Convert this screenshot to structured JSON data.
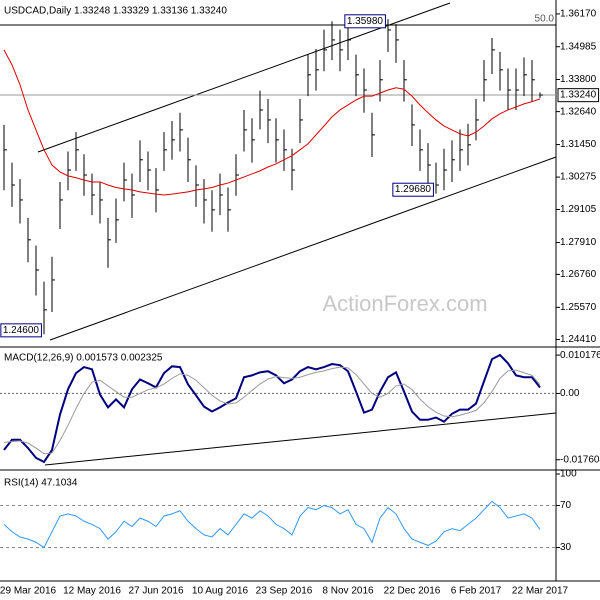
{
  "chart_data": [
    {
      "type": "ohlc",
      "title": "USDCAD,Daily  1.33248 1.33329 1.33136 1.33240",
      "watermark": "ActionForex.com",
      "color": "#000000",
      "categories": [
        null,
        null,
        null,
        "29 Mar 2016",
        null,
        null,
        null,
        null,
        null,
        null,
        null,
        "12 May 2016",
        null,
        null,
        null,
        null,
        null,
        null,
        null,
        "27 Jun 2016",
        null,
        null,
        null,
        null,
        null,
        null,
        null,
        "10 Aug 2016",
        null,
        null,
        null,
        null,
        null,
        null,
        null,
        "23 Sep 2016",
        null,
        null,
        null,
        null,
        null,
        null,
        null,
        "8 Nov 2016",
        null,
        null,
        null,
        null,
        null,
        null,
        null,
        "22 Dec 2016",
        null,
        null,
        null,
        null,
        null,
        null,
        null,
        "6 Feb 2017",
        null,
        null,
        null,
        null,
        null,
        null,
        null,
        "22 Mar 2017"
      ],
      "high": [
        1.3216,
        1.308,
        1.302,
        1.288,
        1.278,
        1.265,
        1.274,
        1.301,
        1.312,
        1.319,
        1.311,
        1.304,
        1.301,
        1.288,
        1.295,
        1.308,
        1.304,
        1.316,
        1.312,
        1.306,
        1.319,
        1.323,
        1.326,
        1.317,
        1.307,
        1.302,
        1.298,
        1.304,
        1.299,
        1.311,
        1.327,
        1.324,
        1.334,
        1.331,
        1.324,
        1.32,
        1.313,
        1.331,
        1.347,
        1.349,
        1.356,
        1.359,
        1.356,
        1.3585,
        1.347,
        1.342,
        1.326,
        1.345,
        1.3598,
        1.358,
        1.345,
        1.329,
        1.32,
        1.315,
        1.308,
        1.313,
        1.316,
        1.32,
        1.322,
        1.331,
        1.345,
        1.353,
        1.348,
        1.342,
        1.342,
        1.346,
        1.345,
        1.33329
      ],
      "low": [
        1.298,
        1.292,
        1.286,
        1.272,
        1.26,
        1.246,
        1.254,
        1.284,
        1.298,
        1.305,
        1.296,
        1.289,
        1.286,
        1.27,
        1.279,
        1.294,
        1.288,
        1.301,
        1.298,
        1.29,
        1.305,
        1.309,
        1.312,
        1.301,
        1.292,
        1.286,
        1.283,
        1.289,
        1.283,
        1.296,
        1.312,
        1.308,
        1.32,
        1.315,
        1.308,
        1.305,
        1.298,
        1.315,
        1.332,
        1.334,
        1.341,
        1.345,
        1.341,
        1.345,
        1.332,
        1.326,
        1.31,
        1.33,
        1.348,
        1.344,
        1.33,
        1.314,
        1.305,
        1.3,
        1.2968,
        1.298,
        1.301,
        1.305,
        1.307,
        1.316,
        1.33,
        1.34,
        1.334,
        1.327,
        1.327,
        1.332,
        1.33,
        1.33136
      ],
      "close": [
        1.3126,
        1.2999,
        1.2945,
        1.2801,
        1.2692,
        1.2548,
        1.2656,
        1.2945,
        1.3053,
        1.3126,
        1.3035,
        1.2963,
        1.2945,
        1.2801,
        1.2873,
        1.3017,
        1.2963,
        1.309,
        1.3053,
        1.2981,
        1.3126,
        1.3162,
        1.3198,
        1.309,
        1.2999,
        1.2945,
        1.2909,
        1.2963,
        1.2909,
        1.3035,
        1.3198,
        1.3162,
        1.327,
        1.3234,
        1.3162,
        1.3126,
        1.3053,
        1.3234,
        1.3397,
        1.3415,
        1.3487,
        1.3523,
        1.3487,
        1.3523,
        1.3397,
        1.3342,
        1.318,
        1.3379,
        1.3559,
        1.3523,
        1.3379,
        1.3216,
        1.3126,
        1.3071,
        1.2999,
        1.3053,
        1.309,
        1.3126,
        1.3144,
        1.3234,
        1.3379,
        1.3487,
        1.3415,
        1.3342,
        1.3342,
        1.3397,
        1.3379,
        1.3324
      ],
      "ma": {
        "color": "#e00000",
        "values": [
          1.3487,
          1.3433,
          1.3361,
          1.327,
          1.3198,
          1.3126,
          1.3071,
          1.3046,
          1.3032,
          1.3025,
          1.3017,
          1.301,
          1.301,
          1.2999,
          1.299,
          1.2985,
          1.2981,
          1.2974,
          1.297,
          1.2966,
          1.2963,
          1.2966,
          1.297,
          1.2974,
          1.2981,
          1.2985,
          1.299,
          1.2999,
          1.3006,
          1.3017,
          1.3028,
          1.3039,
          1.305,
          1.3064,
          1.3075,
          1.309,
          1.3105,
          1.3126,
          1.3148,
          1.318,
          1.3212,
          1.3245,
          1.327,
          1.3288,
          1.3306,
          1.332,
          1.332,
          1.3331,
          1.3342,
          1.335,
          1.3345,
          1.332,
          1.3288,
          1.326,
          1.3234,
          1.3212,
          1.3198,
          1.3184,
          1.3176,
          1.319,
          1.3212,
          1.3238,
          1.3256,
          1.327,
          1.3281,
          1.3292,
          1.33,
          1.331
        ]
      },
      "ylim": [
        1.2421,
        1.366
      ],
      "yticks": [
        {
          "value": 1.3617,
          "label": "1.36170"
        },
        1.34985,
        {
          "value": 1.338,
          "label": "1.33800"
        },
        {
          "value": 1.3264,
          "label": "1.32640"
        },
        {
          "value": 1.3145,
          "label": "1.31450"
        },
        1.30275,
        1.29105,
        {
          "value": 1.2791,
          "label": "1.27910"
        },
        {
          "value": 1.2676,
          "label": "1.26760"
        },
        {
          "value": 1.2557,
          "label": "1.25570"
        },
        {
          "value": 1.2441,
          "label": "1.24410"
        }
      ],
      "price_line": {
        "value": 1.3324,
        "label": "1.33240"
      },
      "fib_level": {
        "value": 1.3577,
        "label": "50.0"
      },
      "annotations": [
        {
          "value": 1.3598,
          "label": "1.35980"
        },
        {
          "value": 1.2968,
          "label": "1.29680"
        },
        {
          "value": 1.246,
          "label": "1.24600"
        }
      ]
    },
    {
      "type": "line",
      "title": "MACD(12,26,9) 0.001573 0.002325",
      "zero_line": true,
      "series": [
        {
          "color": "#000080",
          "values": [
            -0.015,
            -0.0123,
            -0.0123,
            -0.0145,
            -0.0171,
            -0.0182,
            -0.015,
            -0.0056,
            0.0011,
            0.0054,
            0.007,
            0.0064,
            -0.0003,
            -0.0037,
            -0.0016,
            -0.0037,
            0.0011,
            0.0037,
            0.0027,
            0.0016,
            0.0054,
            0.0072,
            0.007,
            0.0024,
            -0.0005,
            -0.0035,
            -0.0048,
            -0.0037,
            -0.0024,
            -0.0013,
            0.0043,
            0.0048,
            0.0056,
            0.0059,
            0.0048,
            0.0027,
            0.0037,
            0.0059,
            0.007,
            0.0064,
            0.007,
            0.0078,
            0.0075,
            0.0059,
            0.0005,
            -0.0051,
            -0.0043,
            0.0005,
            0.0043,
            0.0056,
            0.0005,
            -0.0048,
            -0.007,
            -0.007,
            -0.0064,
            -0.0075,
            -0.0054,
            -0.0043,
            -0.0043,
            -0.0027,
            0.0032,
            0.0091,
            0.0102,
            0.008,
            0.0048,
            0.0043,
            0.0043,
            0.001573
          ]
        },
        {
          "color": "#9a9a9a",
          "values": [
            -0.013,
            -0.0128,
            -0.0126,
            -0.0132,
            -0.0145,
            -0.016,
            -0.0158,
            -0.0125,
            -0.0085,
            -0.004,
            0.0,
            0.003,
            0.0035,
            0.002,
            0.0005,
            -0.001,
            -0.001,
            0.0,
            0.001,
            0.0015,
            0.0025,
            0.004,
            0.0052,
            0.0048,
            0.0035,
            0.0015,
            -0.0005,
            -0.002,
            -0.0028,
            -0.0025,
            -0.001,
            0.0008,
            0.0025,
            0.0038,
            0.0045,
            0.0042,
            0.004,
            0.0043,
            0.005,
            0.0056,
            0.006,
            0.0066,
            0.007,
            0.0068,
            0.005,
            0.0025,
            0.0,
            -0.001,
            0.0,
            0.002,
            0.0025,
            0.001,
            -0.0015,
            -0.0035,
            -0.005,
            -0.006,
            -0.0062,
            -0.0058,
            -0.0052,
            -0.0045,
            -0.0025,
            0.0005,
            0.004,
            0.006,
            0.0062,
            0.0055,
            0.0048,
            0.002325
          ]
        }
      ],
      "ylim": [
        -0.0198,
        0.0118
      ],
      "yticks": [
        0.010176,
        {
          "value": 0,
          "label": "0.00"
        },
        -0.017604
      ]
    },
    {
      "type": "line",
      "title": "RSI(14) 47.1034",
      "grid": true,
      "series": [
        {
          "color": "#3399ff",
          "values": [
            52,
            45,
            40,
            38,
            35,
            30,
            45,
            60,
            62,
            60,
            55,
            52,
            48,
            38,
            45,
            55,
            50,
            58,
            55,
            50,
            60,
            62,
            65,
            55,
            48,
            42,
            40,
            48,
            42,
            52,
            62,
            58,
            65,
            60,
            52,
            48,
            42,
            60,
            68,
            66,
            70,
            68,
            62,
            66,
            52,
            48,
            35,
            58,
            68,
            62,
            48,
            38,
            35,
            32,
            36,
            45,
            48,
            46,
            52,
            58,
            66,
            74,
            68,
            58,
            60,
            62,
            58,
            47.1034
          ]
        }
      ],
      "ylim": [
        0,
        100
      ],
      "yticks": [
        100,
        70,
        30
      ]
    }
  ]
}
